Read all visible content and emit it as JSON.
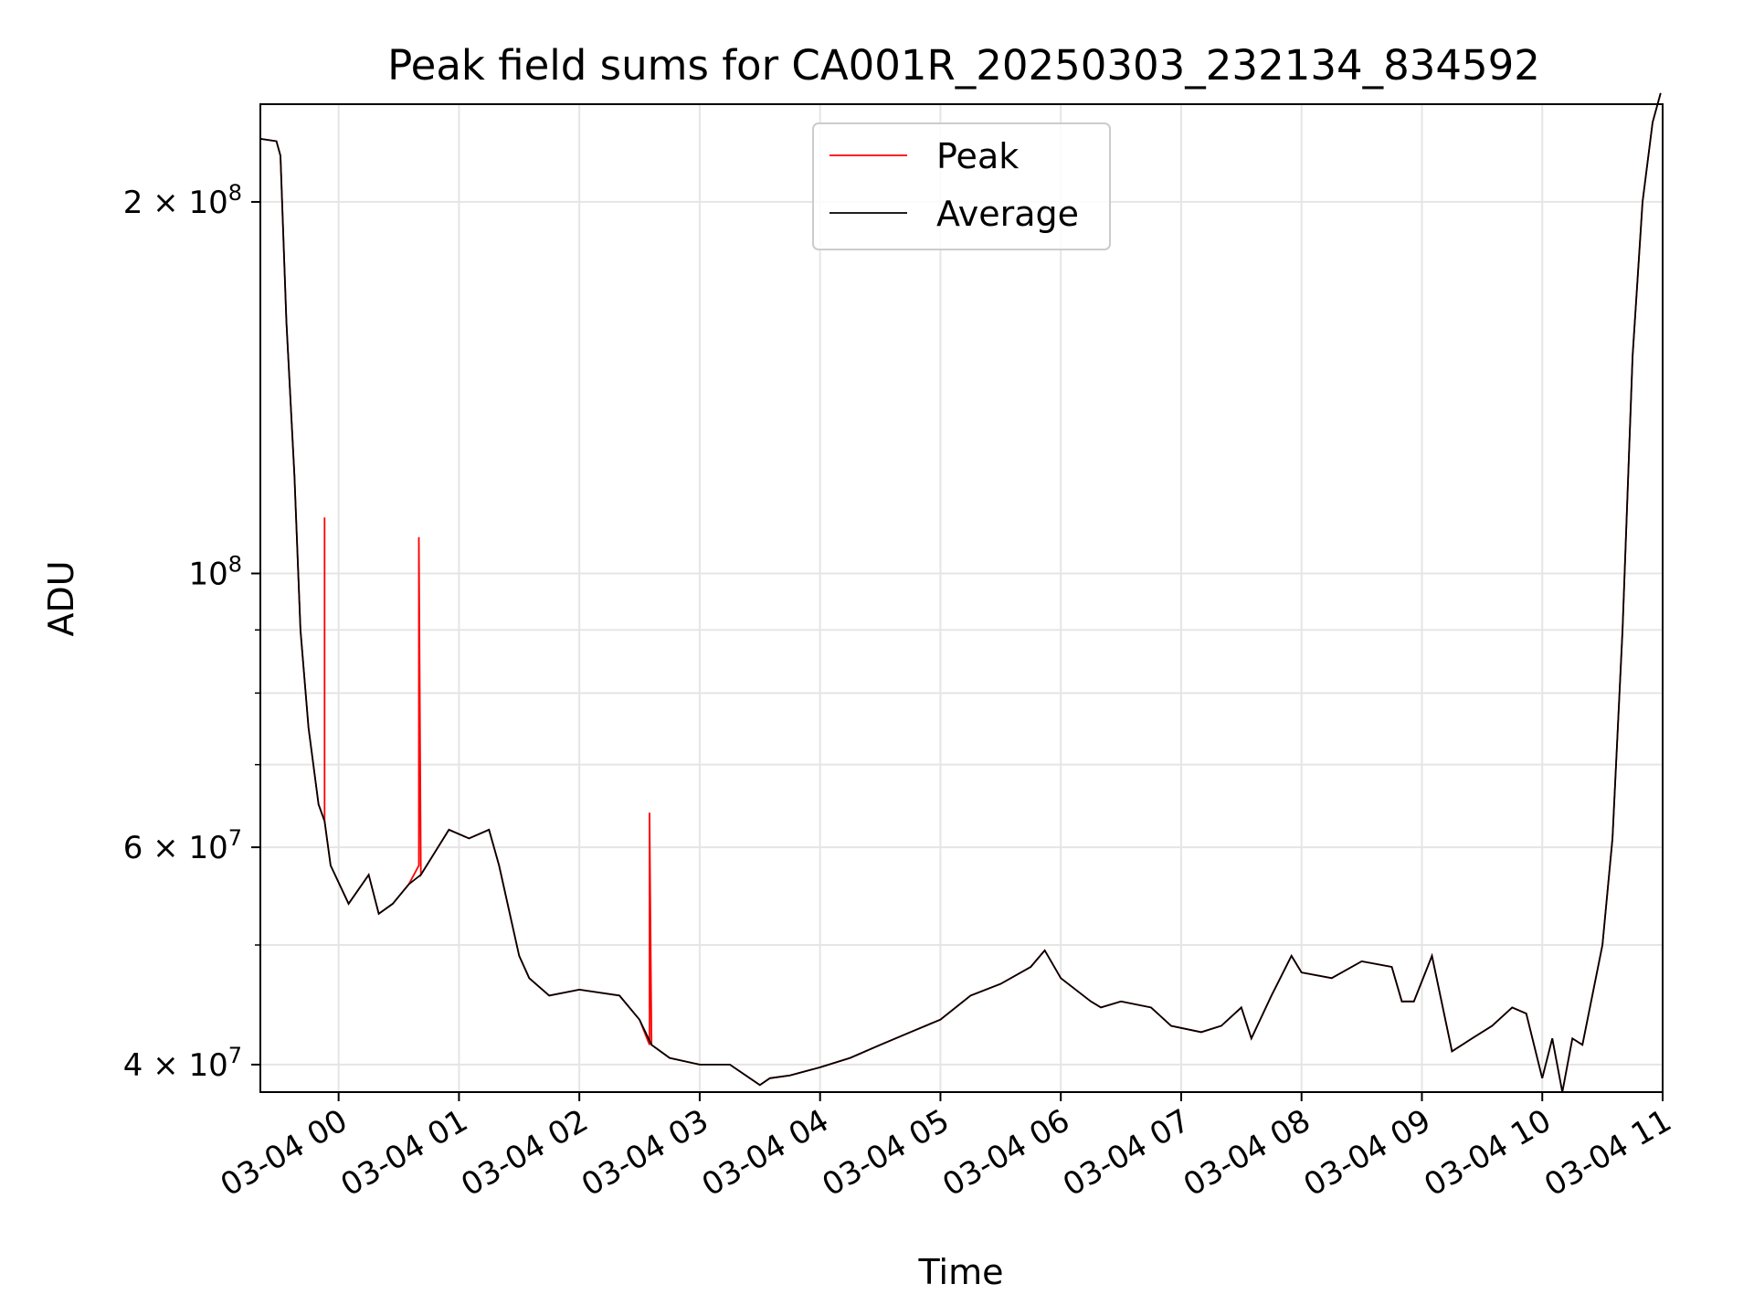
{
  "chart_data": {
    "type": "line",
    "title": "Peak field sums for CA001R_20250303_232134_834592",
    "xlabel": "Time",
    "ylabel": "ADU",
    "yscale": "log",
    "ylim": [
      38000000,
      240000000
    ],
    "xlim": [
      "2025-03-03T23:21",
      "2025-03-04T11:00"
    ],
    "grid": true,
    "legend": "upper center",
    "x_ticks": [
      "03-04 00",
      "03-04 01",
      "03-04 02",
      "03-04 03",
      "03-04 04",
      "03-04 05",
      "03-04 06",
      "03-04 07",
      "03-04 08",
      "03-04 09",
      "03-04 10",
      "03-04 11"
    ],
    "y_tick_labels": [
      {
        "value": 40000000,
        "mantissa": "4",
        "exponent": "7"
      },
      {
        "value": 60000000,
        "mantissa": "6",
        "exponent": "7"
      },
      {
        "value": 100000000,
        "mantissa": "",
        "exponent": "8"
      },
      {
        "value": 200000000,
        "mantissa": "2",
        "exponent": "8"
      }
    ],
    "colors": {
      "Peak": "#ff0000",
      "Average": "#000000"
    },
    "series": [
      {
        "name": "Peak",
        "x": [
          "2025-03-03T23:21",
          "2025-03-03T23:29",
          "2025-03-03T23:31",
          "2025-03-03T23:34",
          "2025-03-03T23:38",
          "2025-03-03T23:41",
          "2025-03-03T23:45",
          "2025-03-03T23:50",
          "2025-03-03T23:53",
          "2025-03-03T23:53",
          "2025-03-03T23:53",
          "2025-03-03T23:56",
          "2025-03-04T00:05",
          "2025-03-04T00:15",
          "2025-03-04T00:20",
          "2025-03-04T00:27",
          "2025-03-04T00:35",
          "2025-03-04T00:40",
          "2025-03-04T00:40",
          "2025-03-04T00:41",
          "2025-03-04T00:55",
          "2025-03-04T01:05",
          "2025-03-04T01:15",
          "2025-03-04T01:20",
          "2025-03-04T01:30",
          "2025-03-04T01:35",
          "2025-03-04T01:45",
          "2025-03-04T02:00",
          "2025-03-04T02:20",
          "2025-03-04T02:30",
          "2025-03-04T02:35",
          "2025-03-04T02:35",
          "2025-03-04T02:36",
          "2025-03-04T02:45",
          "2025-03-04T03:00",
          "2025-03-04T03:15",
          "2025-03-04T03:30",
          "2025-03-04T03:35",
          "2025-03-04T03:45",
          "2025-03-04T04:00",
          "2025-03-04T04:15",
          "2025-03-04T04:30",
          "2025-03-04T04:45",
          "2025-03-04T05:00",
          "2025-03-04T05:15",
          "2025-03-04T05:30",
          "2025-03-04T05:45",
          "2025-03-04T05:52",
          "2025-03-04T06:00",
          "2025-03-04T06:15",
          "2025-03-04T06:20",
          "2025-03-04T06:30",
          "2025-03-04T06:45",
          "2025-03-04T06:55",
          "2025-03-04T07:10",
          "2025-03-04T07:20",
          "2025-03-04T07:30",
          "2025-03-04T07:35",
          "2025-03-04T07:45",
          "2025-03-04T07:55",
          "2025-03-04T08:00",
          "2025-03-04T08:15",
          "2025-03-04T08:30",
          "2025-03-04T08:45",
          "2025-03-04T08:50",
          "2025-03-04T08:56",
          "2025-03-04T09:05",
          "2025-03-04T09:15",
          "2025-03-04T09:25",
          "2025-03-04T09:35",
          "2025-03-04T09:45",
          "2025-03-04T09:52",
          "2025-03-04T10:00",
          "2025-03-04T10:05",
          "2025-03-04T10:10",
          "2025-03-04T10:15",
          "2025-03-04T10:20",
          "2025-03-04T10:30",
          "2025-03-04T10:35",
          "2025-03-04T10:40",
          "2025-03-04T10:45",
          "2025-03-04T10:50",
          "2025-03-04T10:55",
          "2025-03-04T10:59"
        ],
        "values": [
          225000000,
          224000000,
          218000000,
          160000000,
          120000000,
          90000000,
          75000000,
          65000000,
          63000000,
          111000000,
          63000000,
          58000000,
          54000000,
          57000000,
          53000000,
          54000000,
          56000000,
          58000000,
          107000000,
          57000000,
          62000000,
          61000000,
          62000000,
          58000000,
          49000000,
          47000000,
          45500000,
          46000000,
          45500000,
          43500000,
          41500000,
          64000000,
          41500000,
          40500000,
          40000000,
          40000000,
          38500000,
          39000000,
          39200000,
          39800000,
          40500000,
          41500000,
          42500000,
          43500000,
          45500000,
          46500000,
          48000000,
          49500000,
          47000000,
          45000000,
          44500000,
          45000000,
          44500000,
          43000000,
          42500000,
          43000000,
          44500000,
          42000000,
          45500000,
          49000000,
          47500000,
          47000000,
          48500000,
          48000000,
          45000000,
          45000000,
          49000000,
          41000000,
          42000000,
          43000000,
          44500000,
          44000000,
          39000000,
          42000000,
          38000000,
          42000000,
          41500000,
          50000000,
          61000000,
          90000000,
          150000000,
          200000000,
          232000000,
          245000000
        ]
      },
      {
        "name": "Average",
        "x": [
          "2025-03-03T23:21",
          "2025-03-03T23:29",
          "2025-03-03T23:31",
          "2025-03-03T23:34",
          "2025-03-03T23:38",
          "2025-03-03T23:41",
          "2025-03-03T23:45",
          "2025-03-03T23:50",
          "2025-03-03T23:53",
          "2025-03-03T23:56",
          "2025-03-04T00:05",
          "2025-03-04T00:15",
          "2025-03-04T00:20",
          "2025-03-04T00:27",
          "2025-03-04T00:35",
          "2025-03-04T00:41",
          "2025-03-04T00:55",
          "2025-03-04T01:05",
          "2025-03-04T01:15",
          "2025-03-04T01:20",
          "2025-03-04T01:30",
          "2025-03-04T01:35",
          "2025-03-04T01:45",
          "2025-03-04T02:00",
          "2025-03-04T02:20",
          "2025-03-04T02:30",
          "2025-03-04T02:36",
          "2025-03-04T02:45",
          "2025-03-04T03:00",
          "2025-03-04T03:15",
          "2025-03-04T03:30",
          "2025-03-04T03:35",
          "2025-03-04T03:45",
          "2025-03-04T04:00",
          "2025-03-04T04:15",
          "2025-03-04T04:30",
          "2025-03-04T04:45",
          "2025-03-04T05:00",
          "2025-03-04T05:15",
          "2025-03-04T05:30",
          "2025-03-04T05:45",
          "2025-03-04T05:52",
          "2025-03-04T06:00",
          "2025-03-04T06:15",
          "2025-03-04T06:20",
          "2025-03-04T06:30",
          "2025-03-04T06:45",
          "2025-03-04T06:55",
          "2025-03-04T07:10",
          "2025-03-04T07:20",
          "2025-03-04T07:30",
          "2025-03-04T07:35",
          "2025-03-04T07:45",
          "2025-03-04T07:55",
          "2025-03-04T08:00",
          "2025-03-04T08:15",
          "2025-03-04T08:30",
          "2025-03-04T08:45",
          "2025-03-04T08:50",
          "2025-03-04T08:56",
          "2025-03-04T09:05",
          "2025-03-04T09:15",
          "2025-03-04T09:25",
          "2025-03-04T09:35",
          "2025-03-04T09:45",
          "2025-03-04T09:52",
          "2025-03-04T10:00",
          "2025-03-04T10:05",
          "2025-03-04T10:10",
          "2025-03-04T10:15",
          "2025-03-04T10:20",
          "2025-03-04T10:30",
          "2025-03-04T10:35",
          "2025-03-04T10:40",
          "2025-03-04T10:45",
          "2025-03-04T10:50",
          "2025-03-04T10:55",
          "2025-03-04T10:59"
        ],
        "values": [
          225000000,
          224000000,
          218000000,
          160000000,
          120000000,
          90000000,
          75000000,
          65000000,
          63000000,
          58000000,
          54000000,
          57000000,
          53000000,
          54000000,
          56000000,
          57000000,
          62000000,
          61000000,
          62000000,
          58000000,
          49000000,
          47000000,
          45500000,
          46000000,
          45500000,
          43500000,
          41500000,
          40500000,
          40000000,
          40000000,
          38500000,
          39000000,
          39200000,
          39800000,
          40500000,
          41500000,
          42500000,
          43500000,
          45500000,
          46500000,
          48000000,
          49500000,
          47000000,
          45000000,
          44500000,
          45000000,
          44500000,
          43000000,
          42500000,
          43000000,
          44500000,
          42000000,
          45500000,
          49000000,
          47500000,
          47000000,
          48500000,
          48000000,
          45000000,
          45000000,
          49000000,
          41000000,
          42000000,
          43000000,
          44500000,
          44000000,
          39000000,
          42000000,
          38000000,
          42000000,
          41500000,
          50000000,
          61000000,
          90000000,
          150000000,
          200000000,
          232000000,
          245000000
        ]
      }
    ]
  }
}
